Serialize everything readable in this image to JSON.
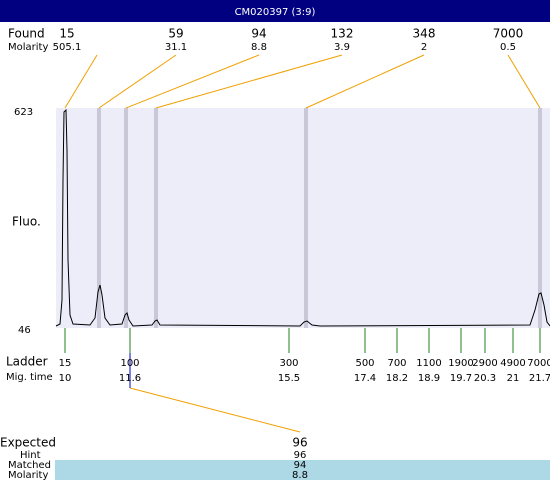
{
  "header": {
    "title": "CM020397 (3:9)"
  },
  "found": {
    "label": "Found",
    "sublabel": "Molarity",
    "peaks": [
      {
        "size": 15,
        "molarity": 505.1
      },
      {
        "size": 59,
        "molarity": 31.1
      },
      {
        "size": 94,
        "molarity": 8.8
      },
      {
        "size": 132,
        "molarity": 3.9
      },
      {
        "size": 348,
        "molarity": 2
      },
      {
        "size": 7000,
        "molarity": 0.5
      }
    ]
  },
  "axis": {
    "label": "Fluo.",
    "max": 623,
    "min": 46
  },
  "ladder": {
    "label": "Ladder",
    "sublabel": "Mig. time",
    "steps": [
      {
        "size": 15,
        "time": 10
      },
      {
        "size": 100,
        "time": 11.6
      },
      {
        "size": 300,
        "time": 15.5
      },
      {
        "size": 500,
        "time": 17.4
      },
      {
        "size": 700,
        "time": 18.2
      },
      {
        "size": 1100,
        "time": 18.9
      },
      {
        "size": 1900,
        "time": 19.7
      },
      {
        "size": 2900,
        "time": 20.3
      },
      {
        "size": 4900,
        "time": 21
      },
      {
        "size": 7000,
        "time": 21.7
      }
    ]
  },
  "expected": {
    "label": "Expected",
    "hint_label": "Hint",
    "matched_label": "Matched",
    "molarity_label": "Molarity",
    "value": 96,
    "hint": 96,
    "matched": 94,
    "molarity": 8.8
  }
}
